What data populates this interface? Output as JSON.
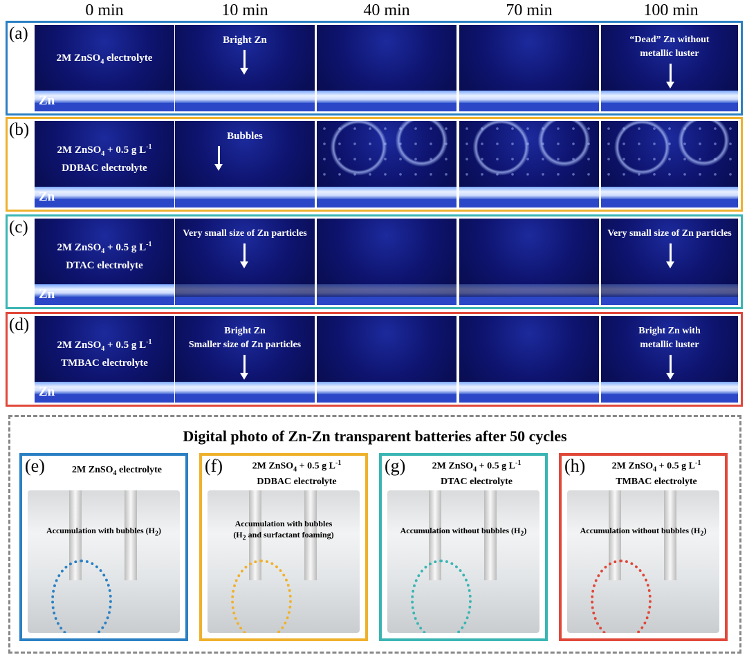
{
  "time_labels": [
    "0 min",
    "10 min",
    "40 min",
    "70 min",
    "100 min"
  ],
  "rows": [
    {
      "label": "(a)",
      "color": "#2b80c3",
      "substrate": "Zn",
      "electrolyte": [
        [
          "2M ZnSO",
          {
            "sub": "4"
          },
          " electrolyte"
        ]
      ],
      "cells": [
        null,
        [
          [
            "Bright Zn"
          ]
        ],
        null,
        null,
        [
          [
            "“Dead” Zn without"
          ],
          [
            "metallic luster"
          ]
        ]
      ]
    },
    {
      "label": "(b)",
      "color": "#efb12c",
      "substrate": "Zn",
      "electrolyte": [
        [
          "2M ZnSO",
          {
            "sub": "4"
          },
          " + 0.5 g L",
          {
            "sup": "-1"
          }
        ],
        [
          "DDBAC electrolyte"
        ]
      ],
      "cells": [
        null,
        [
          [
            "Bubbles"
          ]
        ],
        null,
        null,
        null
      ]
    },
    {
      "label": "(c)",
      "color": "#3ab5b3",
      "substrate": "Zn",
      "electrolyte": [
        [
          "2M ZnSO",
          {
            "sub": "4"
          },
          " + 0.5 g L",
          {
            "sup": "-1"
          }
        ],
        [
          "DTAC electrolyte"
        ]
      ],
      "cells": [
        null,
        [
          [
            "Very small size of Zn particles"
          ]
        ],
        null,
        null,
        [
          [
            "Very small size of Zn particles"
          ]
        ]
      ]
    },
    {
      "label": "(d)",
      "color": "#e0483a",
      "substrate": "Zn",
      "electrolyte": [
        [
          "2M ZnSO",
          {
            "sub": "4"
          },
          " + 0.5 g L",
          {
            "sup": "-1"
          }
        ],
        [
          "TMBAC electrolyte"
        ]
      ],
      "cells": [
        null,
        [
          [
            "Bright Zn"
          ],
          [
            "Smaller size of Zn particles"
          ]
        ],
        null,
        null,
        [
          [
            "Bright Zn with"
          ],
          [
            "metallic luster"
          ]
        ]
      ]
    }
  ],
  "photos": {
    "title": "Digital photo of Zn-Zn transparent batteries after 50 cycles",
    "panels": [
      {
        "label": "(e)",
        "color": "#2b80c3",
        "electrolyte": [
          [
            "2M ZnSO",
            {
              "sub": "4"
            },
            " electrolyte"
          ]
        ],
        "note": [
          [
            "Accumulation with  bubbles (H",
            {
              "sub": "2"
            },
            ")"
          ]
        ]
      },
      {
        "label": "(f)",
        "color": "#efb12c",
        "electrolyte": [
          [
            "2M ZnSO",
            {
              "sub": "4"
            },
            " + 0.5 g L",
            {
              "sup": "-1"
            }
          ],
          [
            "DDBAC electrolyte"
          ]
        ],
        "note": [
          [
            "Accumulation with bubbles"
          ],
          [
            "(H",
            {
              "sub": "2"
            },
            " and surfactant foaming)"
          ]
        ]
      },
      {
        "label": "(g)",
        "color": "#3ab5b3",
        "electrolyte": [
          [
            "2M ZnSO",
            {
              "sub": "4"
            },
            " + 0.5 g L",
            {
              "sup": "-1"
            }
          ],
          [
            "DTAC electrolyte"
          ]
        ],
        "note": [
          [
            "Accumulation without bubbles (H",
            {
              "sub": "2"
            },
            ")"
          ]
        ]
      },
      {
        "label": "(h)",
        "color": "#e0483a",
        "electrolyte": [
          [
            "2M ZnSO",
            {
              "sub": "4"
            },
            " + 0.5 g L",
            {
              "sup": "-1"
            }
          ],
          [
            "TMBAC electrolyte"
          ]
        ],
        "note": [
          [
            "Accumulation without bubbles (H",
            {
              "sub": "2"
            },
            ")"
          ]
        ]
      }
    ]
  }
}
